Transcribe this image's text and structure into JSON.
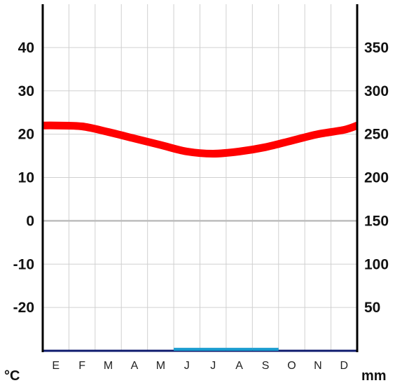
{
  "chart_data": {
    "type": "line",
    "categories": [
      "E",
      "F",
      "M",
      "A",
      "M",
      "J",
      "J",
      "A",
      "S",
      "O",
      "N",
      "D"
    ],
    "temperature_series": {
      "x": [
        "E",
        "F",
        "M",
        "A",
        "M",
        "J",
        "J",
        "A",
        "S",
        "O",
        "N",
        "D"
      ],
      "values": [
        22.0,
        21.8,
        20.5,
        19.0,
        17.5,
        16.0,
        15.5,
        16.0,
        17.0,
        18.5,
        20.0,
        21.0
      ],
      "color": "#ff0000",
      "end_value": 22.0
    },
    "precipitation_series": {
      "values": [
        0,
        0,
        0,
        0,
        0,
        1,
        1,
        1,
        1,
        0,
        0,
        0
      ],
      "color": "#1a9ccf",
      "baseline_color": "#0d1a6e"
    },
    "left_axis": {
      "unit": "°C",
      "range": [
        -30,
        50
      ],
      "ticks": [
        "40",
        "30",
        "20",
        "10",
        "0",
        "-10",
        "-20"
      ],
      "tick_values": [
        40,
        30,
        20,
        10,
        0,
        -10,
        -20
      ]
    },
    "right_axis": {
      "unit": "mm",
      "range": [
        0,
        400
      ],
      "ticks": [
        "350",
        "300",
        "250",
        "200",
        "150",
        "100",
        "50"
      ],
      "tick_values": [
        350,
        300,
        250,
        200,
        150,
        100,
        50
      ]
    },
    "grid": true
  }
}
